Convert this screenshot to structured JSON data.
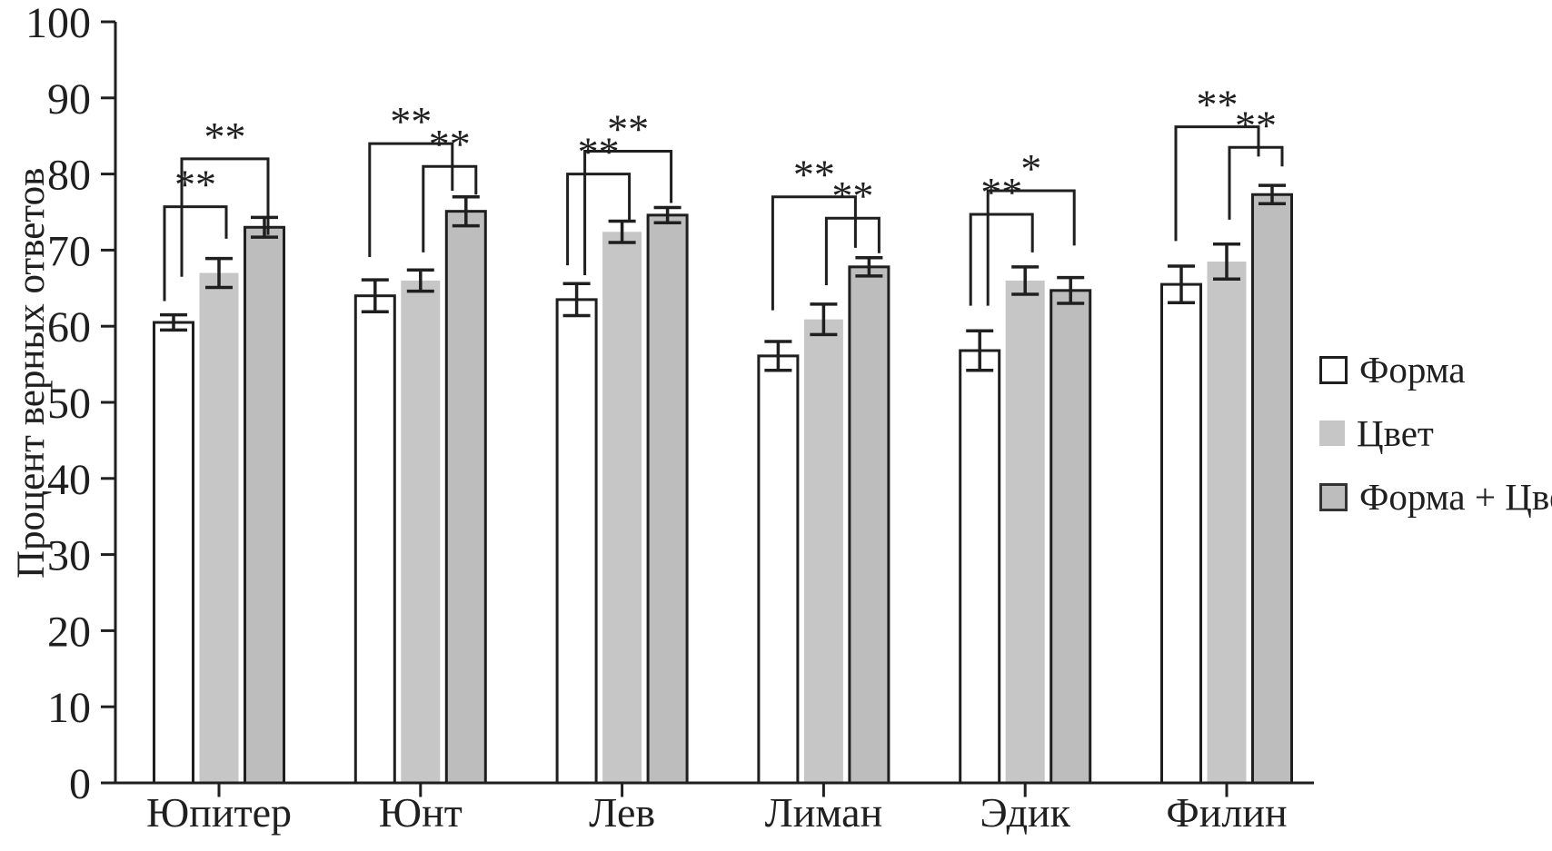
{
  "chart_data": {
    "type": "bar",
    "title": "",
    "xlabel": "",
    "ylabel": "Процент верных ответов",
    "ylim": [
      0,
      100
    ],
    "yticks": [
      0,
      10,
      20,
      30,
      40,
      50,
      60,
      70,
      80,
      90,
      100
    ],
    "grid": false,
    "legend_position": "right",
    "categories": [
      "Юпитер",
      "Юнт",
      "Лев",
      "Лиман",
      "Эдик",
      "Филин"
    ],
    "series": [
      {
        "name": "Форма",
        "fill": "#ffffff",
        "border": true,
        "values": [
          60.5,
          64.0,
          63.5,
          56.1,
          56.8,
          65.5
        ],
        "errors": [
          1.0,
          2.1,
          2.1,
          1.9,
          2.6,
          2.4
        ]
      },
      {
        "name": "Цвет",
        "fill": "#c6c6c6",
        "border": false,
        "values": [
          67.0,
          66.0,
          72.4,
          60.9,
          66.0,
          68.5
        ],
        "errors": [
          1.9,
          1.4,
          1.4,
          2.0,
          1.8,
          2.3
        ]
      },
      {
        "name": "Форма + Цвет",
        "fill": "#bdbdbd",
        "border": true,
        "values": [
          73.0,
          75.1,
          74.6,
          67.8,
          64.7,
          77.3
        ],
        "errors": [
          1.3,
          1.9,
          1.0,
          1.2,
          1.7,
          1.2
        ]
      }
    ],
    "significance_brackets": [
      {
        "category": "Юпитер",
        "pairs": [
          {
            "bars": [
              0,
              2
            ],
            "label": "**",
            "y": 82.0,
            "a_end": 66.5,
            "b_end": 72.0
          },
          {
            "bars": [
              0,
              1
            ],
            "label": "**",
            "y": 75.7,
            "a_end": 63.3,
            "b_end": 71.5
          }
        ]
      },
      {
        "category": "Юнт",
        "pairs": [
          {
            "bars": [
              0,
              2
            ],
            "label": "**",
            "y": 84.0,
            "a_end": 69.1,
            "b_end": 77.8
          },
          {
            "bars": [
              1,
              2
            ],
            "label": "**",
            "y": 81.0,
            "a_end": 69.7,
            "b_end": 77.3
          }
        ]
      },
      {
        "category": "Лев",
        "pairs": [
          {
            "bars": [
              0,
              2
            ],
            "label": "**",
            "y": 83.0,
            "a_end": 66.7,
            "b_end": 76.2
          },
          {
            "bars": [
              0,
              1
            ],
            "label": "**",
            "y": 80.0,
            "a_end": 68.0,
            "b_end": 73.8
          }
        ]
      },
      {
        "category": "Лиман",
        "pairs": [
          {
            "bars": [
              0,
              2
            ],
            "label": "**",
            "y": 77.0,
            "a_end": 62.1,
            "b_end": 70.3
          },
          {
            "bars": [
              1,
              2
            ],
            "label": "**",
            "y": 74.2,
            "a_end": 65.4,
            "b_end": 69.6
          }
        ]
      },
      {
        "category": "Эдик",
        "pairs": [
          {
            "bars": [
              0,
              2
            ],
            "label": "*",
            "y": 77.8,
            "a_end": 62.7,
            "b_end": 70.6
          },
          {
            "bars": [
              0,
              1
            ],
            "label": "**",
            "y": 74.7,
            "a_end": 62.7,
            "b_end": 69.7
          }
        ]
      },
      {
        "category": "Филин",
        "pairs": [
          {
            "bars": [
              0,
              2
            ],
            "label": "**",
            "y": 86.2,
            "a_end": 71.2,
            "b_end": 82.3
          },
          {
            "bars": [
              1,
              2
            ],
            "label": "**",
            "y": 83.5,
            "a_end": 74.0,
            "b_end": 81.0
          }
        ]
      }
    ]
  },
  "colors": {
    "ink": "#1f1f1f",
    "bar_gray_light": "#c6c6c6",
    "bar_gray": "#bdbdbd"
  }
}
